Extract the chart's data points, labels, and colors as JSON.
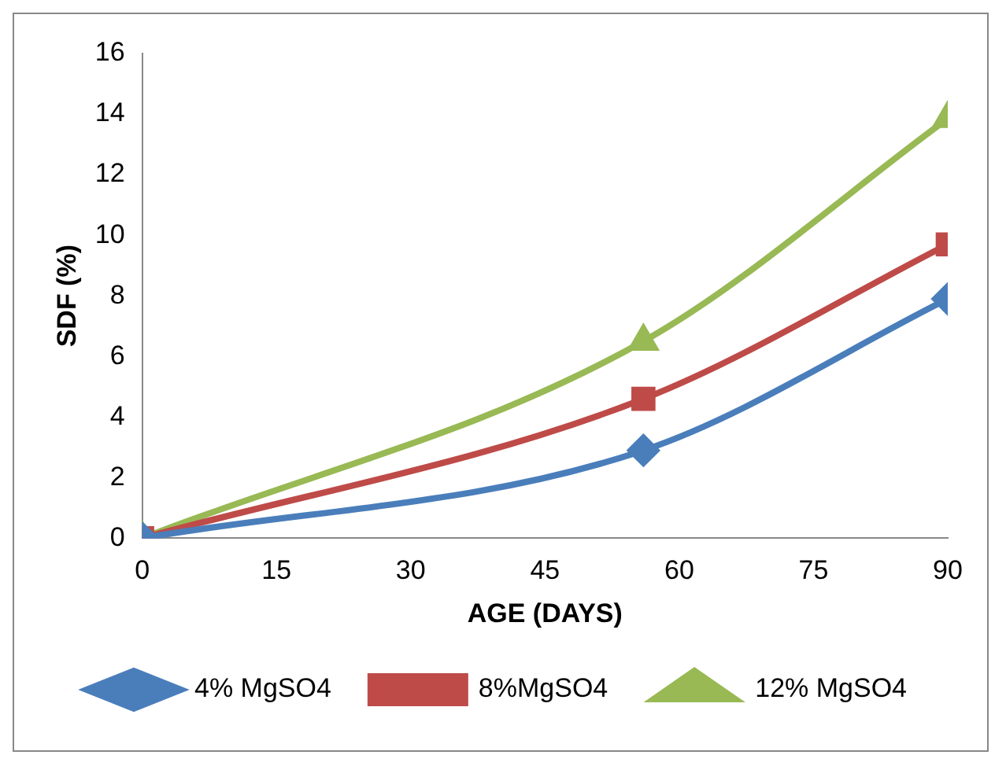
{
  "chart_data": {
    "type": "line",
    "xlabel": "AGE (DAYS)",
    "ylabel": "SDF (%)",
    "x": [
      0,
      56,
      90
    ],
    "xlim": [
      0,
      90
    ],
    "xticks": [
      0,
      15,
      30,
      45,
      60,
      75,
      90
    ],
    "ylim": [
      0,
      16
    ],
    "yticks": [
      0,
      2,
      4,
      6,
      8,
      10,
      12,
      14,
      16
    ],
    "grid": false,
    "legend": "bottom",
    "line_style": "solid",
    "series": [
      {
        "name": "4% MgSO4",
        "color": "#4a7ebb",
        "marker": "diamond",
        "values": [
          0,
          2.9,
          7.9
        ]
      },
      {
        "name": "8%MgSO4",
        "color": "#be4b48",
        "marker": "square",
        "values": [
          0,
          4.6,
          9.7
        ]
      },
      {
        "name": "12% MgSO4",
        "color": "#98b954",
        "marker": "triangle",
        "values": [
          0,
          6.5,
          13.85
        ]
      }
    ]
  }
}
